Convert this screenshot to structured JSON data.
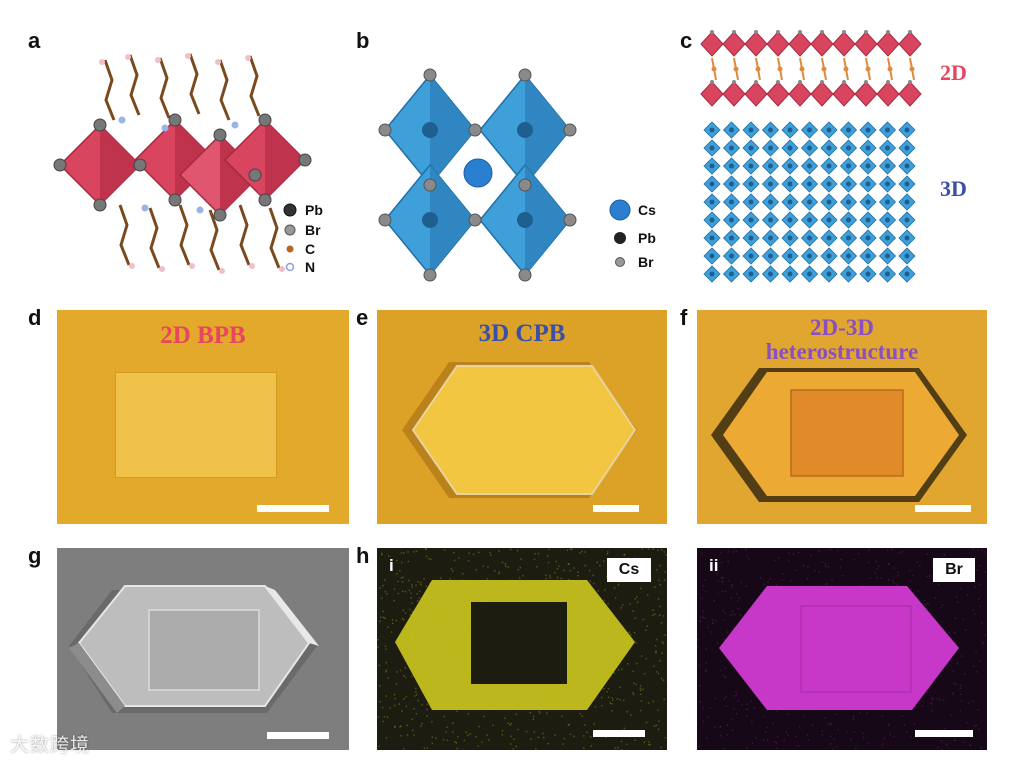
{
  "panel_labels": {
    "a": "a",
    "b": "b",
    "c": "c",
    "d": "d",
    "e": "e",
    "f": "f",
    "g": "g",
    "h": "h"
  },
  "panel_a": {
    "legend": [
      "Pb",
      "Br",
      "C",
      "N"
    ]
  },
  "panel_b": {
    "legend": [
      "Cs",
      "Pb",
      "Br"
    ]
  },
  "panel_c": {
    "label_2d": "2D",
    "label_3d": "3D"
  },
  "panel_d": {
    "title": "2D BPB"
  },
  "panel_e": {
    "title": "3D CPB"
  },
  "panel_f": {
    "title_line1": "2D-3D",
    "title_line2": "heterostructure"
  },
  "panel_h": {
    "sub_i": "i",
    "sub_ii": "ii",
    "tag_cs": "Cs",
    "tag_br": "Br"
  },
  "watermark": "大数跨境",
  "colors": {
    "octa_red": "#d9455f",
    "octa_blue": "#3f9fd8",
    "optical_bg": "#e3a92a",
    "cs_map": "#d8d21c",
    "br_map": "#c838c8",
    "title_red": "#e8455f",
    "title_blue": "#3b4fa8",
    "title_purple": "#8a4fc0"
  }
}
